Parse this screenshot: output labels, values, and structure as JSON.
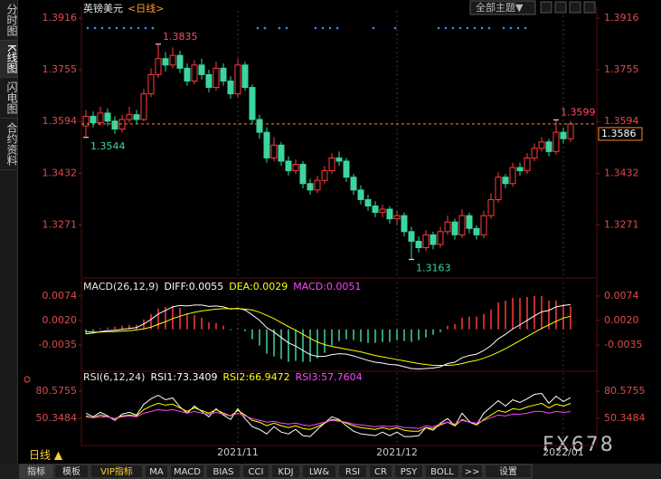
{
  "header": {
    "title": "英镑美元",
    "period": "<日线>",
    "theme_button": "全部主题▼"
  },
  "sidebar": [
    "分时图",
    "K线图",
    "闪电图",
    "合约资料"
  ],
  "chart_data": [
    {
      "type": "candlestick",
      "categories": [
        null,
        null,
        null,
        null,
        null,
        null,
        null,
        null,
        null,
        null,
        null,
        null,
        null,
        null,
        null,
        null,
        null,
        null,
        null,
        null,
        null,
        "2021/11",
        null,
        null,
        null,
        null,
        null,
        null,
        null,
        null,
        null,
        null,
        null,
        null,
        null,
        null,
        null,
        null,
        null,
        null,
        null,
        null,
        null,
        "2021/12",
        null,
        null,
        null,
        null,
        null,
        null,
        null,
        null,
        null,
        null,
        null,
        null,
        null,
        null,
        null,
        null,
        null,
        null,
        null,
        null,
        null,
        null,
        "2022/01",
        null
      ],
      "open": [
        1.358,
        1.361,
        1.359,
        1.362,
        1.3595,
        1.357,
        1.36,
        1.3615,
        1.36,
        1.368,
        1.374,
        1.379,
        1.377,
        1.38,
        1.376,
        1.372,
        1.377,
        1.374,
        1.37,
        1.376,
        1.372,
        1.368,
        1.377,
        1.37,
        1.36,
        1.356,
        1.348,
        1.352,
        1.347,
        1.344,
        1.346,
        1.34,
        1.338,
        1.341,
        1.344,
        1.348,
        1.347,
        1.342,
        1.338,
        1.335,
        1.333,
        1.331,
        1.332,
        1.329,
        1.33,
        1.325,
        1.322,
        1.32,
        1.324,
        1.321,
        1.325,
        1.328,
        1.324,
        1.33,
        1.326,
        1.324,
        1.33,
        1.335,
        1.342,
        1.34,
        1.345,
        1.344,
        1.348,
        1.351,
        1.353,
        1.35,
        1.356,
        1.354
      ],
      "high": [
        1.363,
        1.3625,
        1.364,
        1.3635,
        1.361,
        1.3615,
        1.364,
        1.363,
        1.3695,
        1.376,
        1.3835,
        1.381,
        1.3825,
        1.3815,
        1.3775,
        1.3785,
        1.379,
        1.3755,
        1.378,
        1.3775,
        1.3735,
        1.379,
        1.378,
        1.371,
        1.3615,
        1.3575,
        1.3545,
        1.353,
        1.3485,
        1.3475,
        1.347,
        1.3415,
        1.3425,
        1.3455,
        1.3495,
        1.35,
        1.348,
        1.343,
        1.3395,
        1.3365,
        1.3345,
        1.3335,
        1.333,
        1.3315,
        1.331,
        1.3265,
        1.3235,
        1.3255,
        1.325,
        1.3265,
        1.33,
        1.329,
        1.332,
        1.331,
        1.327,
        1.3315,
        1.337,
        1.3435,
        1.343,
        1.3465,
        1.3465,
        1.3495,
        1.3525,
        1.3545,
        1.354,
        1.3599,
        1.3575,
        1.3595
      ],
      "low": [
        1.3544,
        1.3575,
        1.358,
        1.358,
        1.3555,
        1.356,
        1.359,
        1.3585,
        1.3595,
        1.367,
        1.373,
        1.375,
        1.376,
        1.3745,
        1.3705,
        1.371,
        1.3725,
        1.3685,
        1.369,
        1.3705,
        1.3665,
        1.367,
        1.369,
        1.3585,
        1.354,
        1.3465,
        1.347,
        1.3455,
        1.3425,
        1.343,
        1.3385,
        1.3365,
        1.337,
        1.34,
        1.343,
        1.3455,
        1.3405,
        1.3365,
        1.3335,
        1.3315,
        1.3295,
        1.3295,
        1.3275,
        1.327,
        1.3235,
        1.3163,
        1.3185,
        1.319,
        1.3195,
        1.32,
        1.324,
        1.3225,
        1.323,
        1.3245,
        1.3225,
        1.323,
        1.329,
        1.334,
        1.3385,
        1.339,
        1.3425,
        1.343,
        1.347,
        1.35,
        1.3485,
        1.349,
        1.3525,
        1.353
      ],
      "close": [
        1.361,
        1.359,
        1.362,
        1.3595,
        1.357,
        1.36,
        1.3615,
        1.36,
        1.368,
        1.374,
        1.379,
        1.377,
        1.38,
        1.376,
        1.372,
        1.377,
        1.374,
        1.37,
        1.376,
        1.372,
        1.368,
        1.377,
        1.37,
        1.36,
        1.356,
        1.348,
        1.352,
        1.347,
        1.344,
        1.346,
        1.34,
        1.338,
        1.341,
        1.344,
        1.348,
        1.347,
        1.342,
        1.338,
        1.335,
        1.333,
        1.331,
        1.332,
        1.329,
        1.33,
        1.325,
        1.322,
        1.32,
        1.324,
        1.321,
        1.325,
        1.328,
        1.324,
        1.33,
        1.326,
        1.324,
        1.33,
        1.335,
        1.342,
        1.34,
        1.345,
        1.344,
        1.348,
        1.351,
        1.353,
        1.35,
        1.356,
        1.354,
        1.3586
      ],
      "up_color": "#ff3b3b",
      "down_color": "#3ad6a0",
      "ylim": [
        1.3111,
        1.3939
      ],
      "yticks": [
        1.3271,
        1.3432,
        1.3594,
        1.3755,
        1.3916
      ],
      "annotations": {
        "max": 1.3835,
        "min": 1.3163,
        "first_low": 1.3544,
        "last_high": 1.3599
      },
      "last_price": 1.3586
    },
    {
      "type": "macd",
      "title": "MACD(26,12,9)",
      "series": [
        {
          "name": "DIFF:0.0055",
          "color": "#ffffff",
          "kind": "line",
          "values": [
            -0.001,
            -0.0008,
            -0.0005,
            -0.0003,
            -0.0002,
            0.0,
            0.0002,
            0.0004,
            0.0012,
            0.0022,
            0.0034,
            0.0042,
            0.005,
            0.0053,
            0.0052,
            0.0054,
            0.0054,
            0.0051,
            0.0052,
            0.005,
            0.0045,
            0.0047,
            0.0043,
            0.0032,
            0.002,
            0.0004,
            -0.0006,
            -0.0018,
            -0.003,
            -0.0037,
            -0.0047,
            -0.0056,
            -0.006,
            -0.006,
            -0.0056,
            -0.0054,
            -0.0055,
            -0.0059,
            -0.0064,
            -0.0069,
            -0.0073,
            -0.0075,
            -0.0078,
            -0.0079,
            -0.0083,
            -0.0087,
            -0.0088,
            -0.0087,
            -0.0086,
            -0.0083,
            -0.0076,
            -0.0073,
            -0.0063,
            -0.0058,
            -0.0055,
            -0.0047,
            -0.0036,
            -0.0021,
            -0.0011,
            0.0001,
            0.001,
            0.002,
            0.003,
            0.0039,
            0.0042,
            0.005,
            0.0053,
            0.0055
          ]
        },
        {
          "name": "DEA:0.0029",
          "color": "#ffff00",
          "kind": "line",
          "values": [
            -0.0005,
            -0.0006,
            -0.0006,
            -0.0005,
            -0.0005,
            -0.0004,
            -0.0003,
            -0.0001,
            0.0001,
            0.0005,
            0.0011,
            0.0017,
            0.0024,
            0.0029,
            0.0034,
            0.0038,
            0.0041,
            0.0043,
            0.0045,
            0.0046,
            0.0046,
            0.0046,
            0.0045,
            0.0043,
            0.0038,
            0.0031,
            0.0024,
            0.0015,
            0.0006,
            -0.0002,
            -0.0011,
            -0.002,
            -0.0028,
            -0.0034,
            -0.0038,
            -0.0041,
            -0.0044,
            -0.0047,
            -0.005,
            -0.0054,
            -0.0058,
            -0.0061,
            -0.0064,
            -0.0067,
            -0.007,
            -0.0073,
            -0.0076,
            -0.0078,
            -0.008,
            -0.008,
            -0.008,
            -0.0079,
            -0.0076,
            -0.0072,
            -0.0069,
            -0.0064,
            -0.0058,
            -0.0051,
            -0.0043,
            -0.0034,
            -0.0025,
            -0.0016,
            -0.0007,
            0.0002,
            0.001,
            0.0018,
            0.0025,
            0.0029
          ]
        },
        {
          "name": "MACD:0.0051",
          "color": "#ff44ff",
          "kind": "bar",
          "values": [
            -0.001,
            -0.0004,
            0.0002,
            0.0004,
            0.0006,
            0.0008,
            0.001,
            0.001,
            0.0022,
            0.0034,
            0.0046,
            0.005,
            0.0052,
            0.0048,
            0.0036,
            0.0032,
            0.0026,
            0.0016,
            0.0014,
            0.0008,
            -0.0002,
            0.0002,
            -0.0004,
            -0.0022,
            -0.0036,
            -0.0054,
            -0.006,
            -0.0066,
            -0.0072,
            -0.007,
            -0.0072,
            -0.0072,
            -0.0064,
            -0.0052,
            -0.0036,
            -0.0026,
            -0.0022,
            -0.0024,
            -0.0028,
            -0.003,
            -0.003,
            -0.0028,
            -0.0028,
            -0.0024,
            -0.0026,
            -0.0028,
            -0.0024,
            -0.0018,
            -0.0012,
            -0.0006,
            0.0008,
            0.0012,
            0.0026,
            0.0028,
            0.0028,
            0.0034,
            0.0044,
            0.006,
            0.0064,
            0.007,
            0.007,
            0.0072,
            0.0074,
            0.0074,
            0.0064,
            0.0064,
            0.0056,
            0.0051
          ]
        }
      ],
      "up_color": "#ff3b3b",
      "down_color": "#3ad6a0",
      "ylim": [
        -0.0089,
        0.0104
      ],
      "yticks": [
        0.0074,
        {
          "value": 0.002,
          "label": "0.0020"
        },
        {
          "value": -0.0035,
          "label": "-0.0035"
        }
      ]
    },
    {
      "type": "rsi",
      "title": "RSI(6,12,24)",
      "series": [
        {
          "name": "RSI1:73.3409",
          "color": "#ffffff",
          "values": [
            56,
            52,
            57,
            53,
            48,
            55,
            57,
            54,
            66,
            72,
            76,
            71,
            73,
            63,
            56,
            64,
            58,
            52,
            61,
            54,
            49,
            61,
            50,
            41,
            38,
            33,
            41,
            35,
            33,
            38,
            31,
            30,
            38,
            45,
            52,
            49,
            42,
            36,
            33,
            32,
            31,
            35,
            31,
            35,
            30,
            30,
            31,
            40,
            37,
            45,
            50,
            42,
            56,
            47,
            43,
            56,
            63,
            70,
            64,
            71,
            68,
            72,
            77,
            78,
            67,
            75,
            69,
            73.3409
          ]
        },
        {
          "name": "RSI2:66.9472",
          "color": "#ffff00",
          "values": [
            53,
            51,
            54,
            52,
            50,
            53,
            54,
            53,
            60,
            64,
            67,
            65,
            66,
            62,
            58,
            62,
            59,
            56,
            60,
            56,
            53,
            59,
            54,
            48,
            46,
            42,
            45,
            42,
            40,
            42,
            39,
            38,
            41,
            45,
            49,
            48,
            45,
            42,
            40,
            39,
            38,
            40,
            38,
            40,
            37,
            36,
            36,
            40,
            39,
            43,
            46,
            42,
            49,
            46,
            43,
            49,
            54,
            59,
            57,
            61,
            60,
            63,
            65,
            67,
            62,
            66,
            64,
            66.9472
          ]
        },
        {
          "name": "RSI3:57.7604",
          "color": "#ff44ff",
          "values": [
            52,
            51,
            52,
            52,
            50,
            52,
            53,
            52,
            56,
            58,
            60,
            59,
            60,
            58,
            56,
            58,
            56,
            55,
            57,
            55,
            53,
            56,
            53,
            50,
            48,
            46,
            47,
            45,
            44,
            45,
            43,
            42,
            44,
            46,
            48,
            47,
            46,
            44,
            43,
            42,
            41,
            42,
            41,
            42,
            40,
            40,
            39,
            42,
            41,
            44,
            46,
            44,
            48,
            46,
            45,
            48,
            51,
            54,
            53,
            55,
            55,
            56,
            58,
            58,
            56,
            58,
            57,
            57.7604
          ]
        }
      ],
      "ylim": [
        22.1,
        100.7
      ],
      "yticks": [
        50.3484,
        80.5755
      ]
    }
  ],
  "footer": {
    "period": "日线 ▲",
    "tabs": [
      "指标",
      "模板",
      "VIP指标",
      "MA",
      "MACD",
      "BIAS",
      "CCI",
      "KDJ",
      "LW&",
      "RSI",
      "CR",
      "PSY",
      "BOLL",
      ">>",
      "设置"
    ],
    "watermark": "FX678"
  }
}
